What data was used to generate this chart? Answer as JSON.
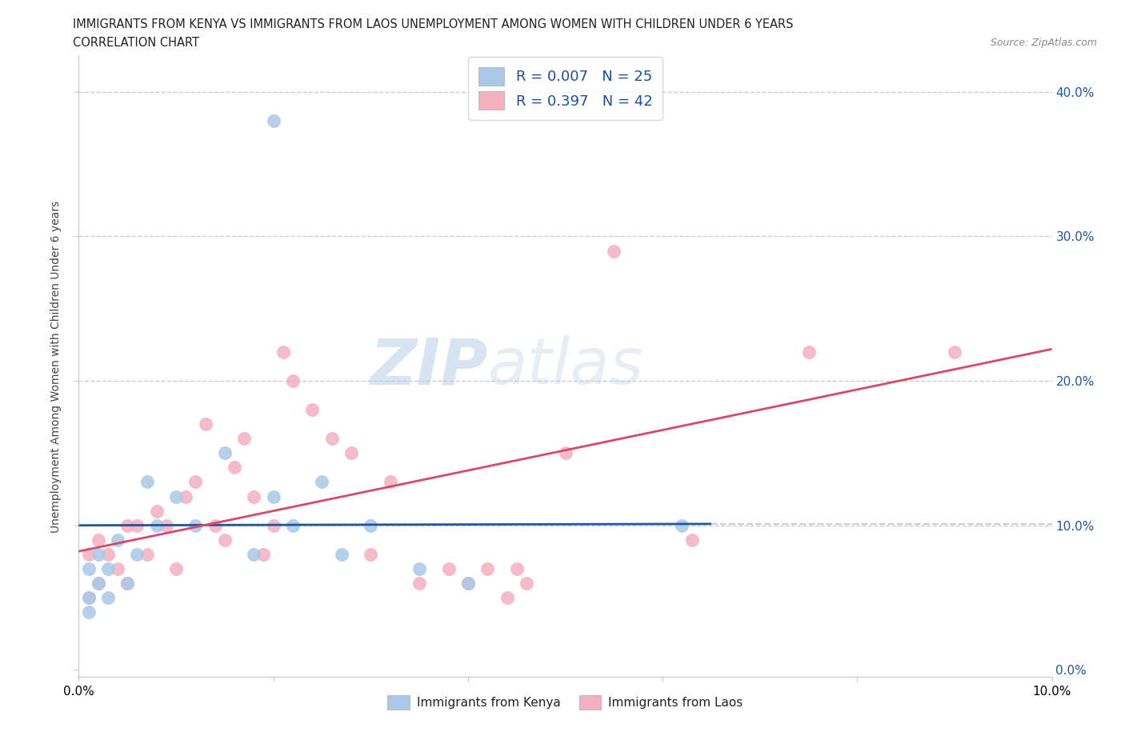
{
  "title_line1": "IMMIGRANTS FROM KENYA VS IMMIGRANTS FROM LAOS UNEMPLOYMENT AMONG WOMEN WITH CHILDREN UNDER 6 YEARS",
  "title_line2": "CORRELATION CHART",
  "source": "Source: ZipAtlas.com",
  "ylabel": "Unemployment Among Women with Children Under 6 years",
  "xlim": [
    0.0,
    0.1
  ],
  "ylim": [
    -0.005,
    0.425
  ],
  "xticks": [
    0.0,
    0.02,
    0.04,
    0.06,
    0.08,
    0.1
  ],
  "yticks": [
    0.0,
    0.1,
    0.2,
    0.3,
    0.4
  ],
  "ytick_labels_right": [
    "0.0%",
    "10.0%",
    "20.0%",
    "30.0%",
    "40.0%"
  ],
  "xtick_labels": [
    "0.0%",
    "",
    "",
    "",
    "",
    "10.0%"
  ],
  "kenya_R": 0.007,
  "kenya_N": 25,
  "laos_R": 0.397,
  "laos_N": 42,
  "kenya_color": "#aac8e8",
  "laos_color": "#f5b0c0",
  "kenya_line_color": "#2255a0",
  "laos_line_color": "#d84868",
  "grid_color": "#cccccc",
  "background_color": "#ffffff",
  "watermark_left": "ZIP",
  "watermark_right": "atlas",
  "kenya_x": [
    0.001,
    0.001,
    0.001,
    0.002,
    0.002,
    0.003,
    0.003,
    0.004,
    0.005,
    0.006,
    0.007,
    0.008,
    0.01,
    0.012,
    0.015,
    0.018,
    0.02,
    0.022,
    0.025,
    0.027,
    0.03,
    0.035,
    0.04,
    0.062,
    0.02
  ],
  "kenya_y": [
    0.07,
    0.04,
    0.05,
    0.06,
    0.08,
    0.05,
    0.07,
    0.09,
    0.06,
    0.08,
    0.13,
    0.1,
    0.12,
    0.1,
    0.15,
    0.08,
    0.12,
    0.1,
    0.13,
    0.08,
    0.1,
    0.07,
    0.06,
    0.1,
    0.38
  ],
  "laos_x": [
    0.001,
    0.001,
    0.002,
    0.002,
    0.003,
    0.004,
    0.005,
    0.005,
    0.006,
    0.007,
    0.008,
    0.009,
    0.01,
    0.011,
    0.012,
    0.013,
    0.014,
    0.015,
    0.016,
    0.017,
    0.018,
    0.019,
    0.02,
    0.021,
    0.022,
    0.024,
    0.026,
    0.028,
    0.03,
    0.032,
    0.035,
    0.038,
    0.04,
    0.042,
    0.044,
    0.045,
    0.046,
    0.05,
    0.055,
    0.063,
    0.075,
    0.09
  ],
  "laos_y": [
    0.05,
    0.08,
    0.06,
    0.09,
    0.08,
    0.07,
    0.06,
    0.1,
    0.1,
    0.08,
    0.11,
    0.1,
    0.07,
    0.12,
    0.13,
    0.17,
    0.1,
    0.09,
    0.14,
    0.16,
    0.12,
    0.08,
    0.1,
    0.22,
    0.2,
    0.18,
    0.16,
    0.15,
    0.08,
    0.13,
    0.06,
    0.07,
    0.06,
    0.07,
    0.05,
    0.07,
    0.06,
    0.15,
    0.29,
    0.09,
    0.22,
    0.22
  ],
  "kenya_line_x0": 0.0,
  "kenya_line_x1": 0.065,
  "kenya_line_y0": 0.1,
  "kenya_line_y1": 0.101,
  "laos_line_x0": 0.0,
  "laos_line_x1": 0.1,
  "laos_line_y0": 0.082,
  "laos_line_y1": 0.222
}
